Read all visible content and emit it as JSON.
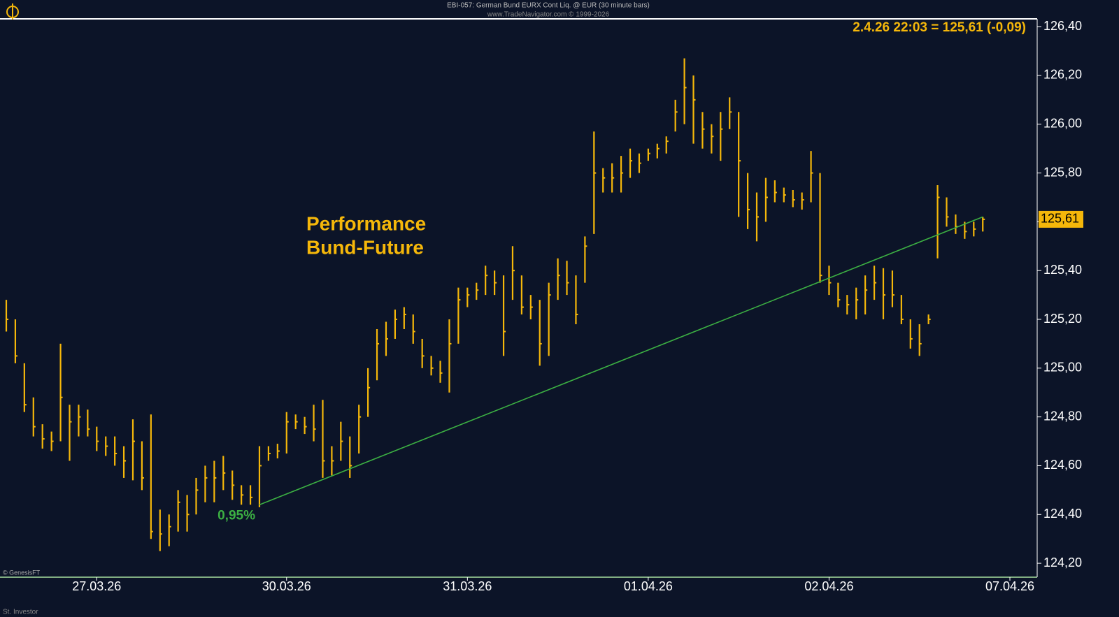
{
  "chart_data": {
    "type": "ohlc",
    "title": "EBI-057:  German Bund EURX Cont Liq. @ EUR  (30 minute bars)",
    "subtitle": "www.TradeNavigator.com © 1999-2026",
    "quote": "2.4.26 22:03 = 125,61 (-0,09)",
    "annotation": [
      "Performance",
      "Bund-Future"
    ],
    "credit": "© GenesisFT",
    "footer": "St. Investor",
    "color": "#f5b70a",
    "last": {
      "value": 125.61,
      "label": "125,61"
    },
    "trendline": {
      "x": [
        28,
        108
      ],
      "values": [
        124.44,
        125.62
      ],
      "color": "#3cb043",
      "label": "0,95%"
    },
    "ylim": [
      124.143,
      126.429
    ],
    "yticks": [
      {
        "value": 126.4,
        "label": "126,40"
      },
      {
        "value": 126.2,
        "label": "126,20"
      },
      {
        "value": 126.0,
        "label": "126,00"
      },
      {
        "value": 125.8,
        "label": "125,80"
      },
      {
        "value": 125.6,
        "label": "125,60"
      },
      {
        "value": 125.4,
        "label": "125,40"
      },
      {
        "value": 125.2,
        "label": "125,20"
      },
      {
        "value": 125.0,
        "label": "125,00"
      },
      {
        "value": 124.8,
        "label": "124,80"
      },
      {
        "value": 124.6,
        "label": "124,60"
      },
      {
        "value": 124.4,
        "label": "124,40"
      },
      {
        "value": 124.2,
        "label": "124,20"
      }
    ],
    "categories": [
      null,
      null,
      null,
      null,
      null,
      null,
      null,
      null,
      null,
      null,
      "27.03.26",
      null,
      null,
      null,
      null,
      null,
      null,
      null,
      null,
      null,
      null,
      null,
      null,
      null,
      null,
      null,
      null,
      null,
      null,
      null,
      null,
      "30.03.26",
      null,
      null,
      null,
      null,
      null,
      null,
      null,
      null,
      null,
      null,
      null,
      null,
      null,
      null,
      null,
      null,
      null,
      null,
      null,
      "31.03.26",
      null,
      null,
      null,
      null,
      null,
      null,
      null,
      null,
      null,
      null,
      null,
      null,
      null,
      null,
      null,
      null,
      null,
      null,
      null,
      "01.04.26",
      null,
      null,
      null,
      null,
      null,
      null,
      null,
      null,
      null,
      null,
      null,
      null,
      null,
      null,
      null,
      null,
      null,
      null,
      null,
      "02.04.26",
      null,
      null,
      null,
      null,
      null,
      null,
      null,
      null,
      null,
      null,
      null,
      null,
      null,
      null,
      null,
      null,
      null,
      null,
      null,
      "07.04.26"
    ],
    "high": [
      125.28,
      125.2,
      125.02,
      124.88,
      124.77,
      124.74,
      125.1,
      124.85,
      124.85,
      124.83,
      124.76,
      124.72,
      124.72,
      124.68,
      124.79,
      124.7,
      124.81,
      124.42,
      124.4,
      124.5,
      124.48,
      124.55,
      124.6,
      124.62,
      124.64,
      124.58,
      124.52,
      124.52,
      124.68,
      124.68,
      124.69,
      124.82,
      124.81,
      124.8,
      124.85,
      124.87,
      124.68,
      124.78,
      124.72,
      124.85,
      125.0,
      125.16,
      125.19,
      125.24,
      125.25,
      125.22,
      125.12,
      125.05,
      125.03,
      125.2,
      125.33,
      125.33,
      125.35,
      125.42,
      125.4,
      125.38,
      125.5,
      125.38,
      125.3,
      125.28,
      125.35,
      125.45,
      125.44,
      125.38,
      125.54,
      125.97,
      125.82,
      125.84,
      125.87,
      125.9,
      125.88,
      125.9,
      125.92,
      125.95,
      126.1,
      126.27,
      126.2,
      126.05,
      126.0,
      126.05,
      126.11,
      126.05,
      125.8,
      125.72,
      125.78,
      125.77,
      125.74,
      125.73,
      125.72,
      125.89,
      125.8,
      125.42,
      125.35,
      125.3,
      125.33,
      125.38,
      125.42,
      125.41,
      125.4,
      125.3,
      125.2,
      125.18,
      125.22,
      125.75,
      125.7,
      125.63,
      125.6,
      125.6,
      125.62,
      null,
      null,
      null
    ],
    "low": [
      125.15,
      125.02,
      124.82,
      124.72,
      124.67,
      124.66,
      124.7,
      124.62,
      124.72,
      124.72,
      124.66,
      124.64,
      124.6,
      124.55,
      124.54,
      124.5,
      124.3,
      124.25,
      124.27,
      124.33,
      124.33,
      124.4,
      124.45,
      124.45,
      124.5,
      124.46,
      124.44,
      124.44,
      124.43,
      124.62,
      124.63,
      124.65,
      124.75,
      124.73,
      124.7,
      124.55,
      124.56,
      124.62,
      124.55,
      124.65,
      124.8,
      124.95,
      125.05,
      125.12,
      125.16,
      125.1,
      125.0,
      124.97,
      124.94,
      124.9,
      125.1,
      125.25,
      125.28,
      125.3,
      125.3,
      125.05,
      125.28,
      125.22,
      125.2,
      125.01,
      125.05,
      125.28,
      125.3,
      125.18,
      125.35,
      125.55,
      125.72,
      125.72,
      125.72,
      125.78,
      125.8,
      125.85,
      125.86,
      125.88,
      125.97,
      126.0,
      125.92,
      125.9,
      125.88,
      125.85,
      125.98,
      125.62,
      125.57,
      125.52,
      125.6,
      125.68,
      125.68,
      125.66,
      125.65,
      125.68,
      125.35,
      125.3,
      125.25,
      125.22,
      125.2,
      125.22,
      125.28,
      125.2,
      125.25,
      125.18,
      125.08,
      125.05,
      125.18,
      125.45,
      125.58,
      125.55,
      125.53,
      125.54,
      125.56,
      null,
      null,
      null
    ],
    "close": [
      125.2,
      125.05,
      124.85,
      124.76,
      124.71,
      124.7,
      124.88,
      124.78,
      124.8,
      124.75,
      124.7,
      124.68,
      124.65,
      124.62,
      124.7,
      124.55,
      124.33,
      124.32,
      124.35,
      124.45,
      124.4,
      124.5,
      124.55,
      124.55,
      124.57,
      124.52,
      124.48,
      124.47,
      124.6,
      124.65,
      124.66,
      124.78,
      124.78,
      124.76,
      124.75,
      124.62,
      124.62,
      124.7,
      124.6,
      124.8,
      124.92,
      125.1,
      125.12,
      125.2,
      125.22,
      125.15,
      125.05,
      125.0,
      124.98,
      125.1,
      125.28,
      125.3,
      125.32,
      125.38,
      125.35,
      125.15,
      125.4,
      125.25,
      125.25,
      125.1,
      125.3,
      125.38,
      125.35,
      125.22,
      125.5,
      125.8,
      125.78,
      125.78,
      125.8,
      125.85,
      125.84,
      125.88,
      125.9,
      125.93,
      126.05,
      126.15,
      126.1,
      125.98,
      125.95,
      125.98,
      126.05,
      125.85,
      125.65,
      125.62,
      125.7,
      125.72,
      125.71,
      125.69,
      125.69,
      125.8,
      125.38,
      125.35,
      125.28,
      125.26,
      125.28,
      125.32,
      125.35,
      125.3,
      125.3,
      125.2,
      125.12,
      125.1,
      125.2,
      125.7,
      125.62,
      125.58,
      125.56,
      125.57,
      125.61,
      null,
      null,
      null
    ]
  }
}
